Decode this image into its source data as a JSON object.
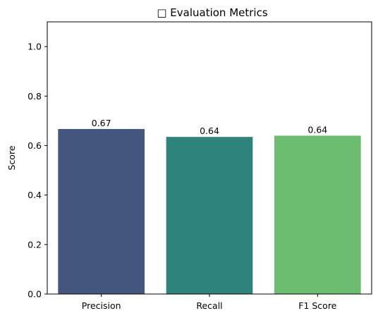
{
  "chart_data": {
    "type": "bar",
    "title": "□ Evaluation Metrics",
    "xlabel": "",
    "ylabel": "Score",
    "categories": [
      "Precision",
      "Recall",
      "F1 Score"
    ],
    "values": [
      0.667,
      0.635,
      0.64
    ],
    "data_labels": [
      "0.67",
      "0.64",
      "0.64"
    ],
    "colors": [
      "#46577f",
      "#2e837c",
      "#6cbd6f"
    ],
    "ylim": [
      0,
      1.1
    ],
    "yticks": [
      0.0,
      0.2,
      0.4,
      0.6,
      0.8,
      1.0
    ],
    "ytick_labels": [
      "0.0",
      "0.2",
      "0.4",
      "0.6",
      "0.8",
      "1.0"
    ],
    "grid": false,
    "legend": "none"
  }
}
